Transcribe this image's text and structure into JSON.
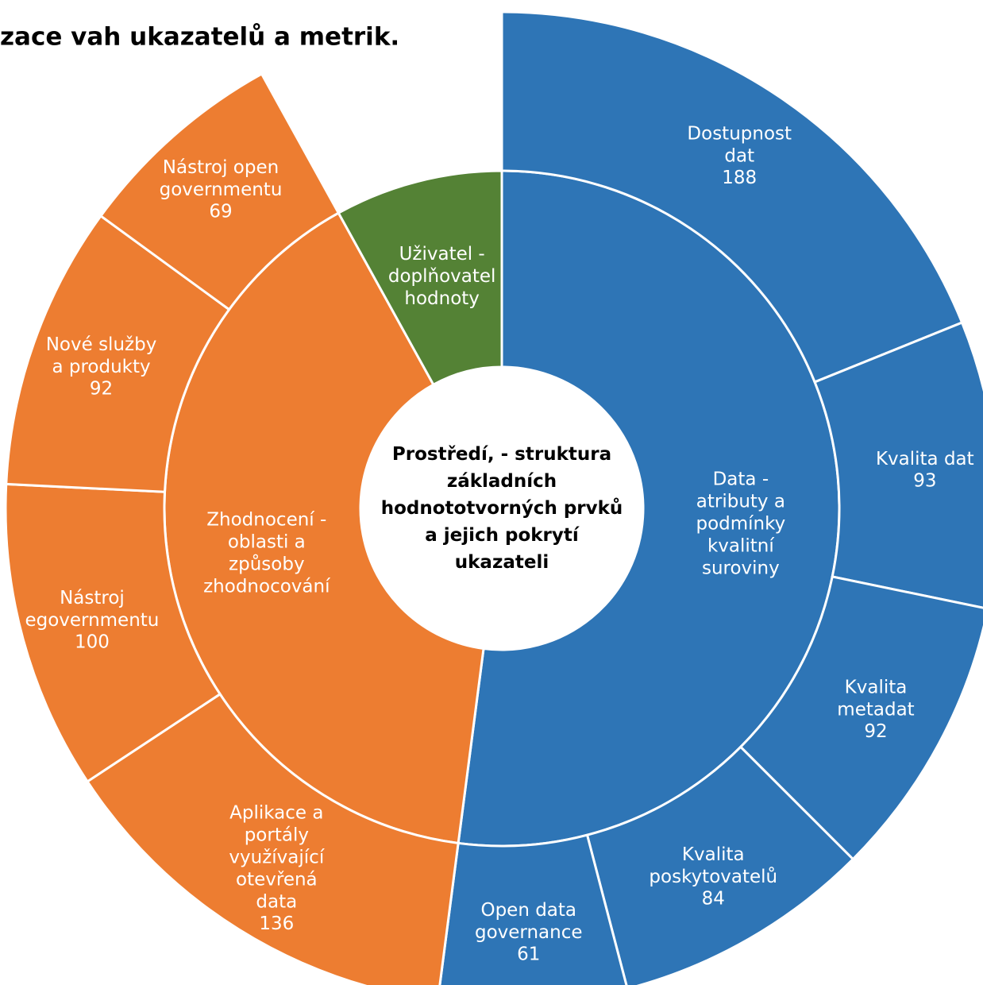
{
  "chart_data": {
    "type": "sunburst",
    "title": "zace vah ukazatelů a metrik.",
    "center": "Prostředí, - struktura základních hodnototvorných prvků a jejich pokrytí ukazateli",
    "children": [
      {
        "name": "Data - atributy a podmínky kvalitní suroviny",
        "color": "#2e75b6",
        "children": [
          {
            "name": "Dostupnost dat",
            "value": 188
          },
          {
            "name": "Kvalita dat",
            "value": 93
          },
          {
            "name": "Kvalita metadat",
            "value": 92
          },
          {
            "name": "Kvalita poskytovatelů",
            "value": 84
          },
          {
            "name": "Open data governance",
            "value": 61
          }
        ]
      },
      {
        "name": "Zhodnocení - oblasti a způsoby zhodnocování",
        "color": "#ed7d31",
        "children": [
          {
            "name": "Aplikace a portály využívající otevřená data",
            "value": 136
          },
          {
            "name": "Nástroj egovernmentu",
            "value": 100
          },
          {
            "name": "Nové služby a produkty",
            "value": 92
          },
          {
            "name": "Nástroj open governmentu",
            "value": 69
          }
        ]
      },
      {
        "name": "Uživatel - doplňovatel hodnoty",
        "color": "#548235",
        "value": 80
      }
    ]
  }
}
